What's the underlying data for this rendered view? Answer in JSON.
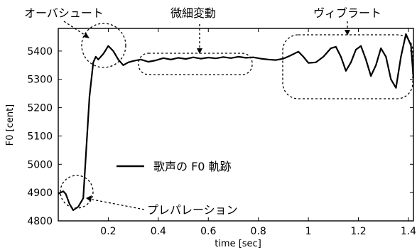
{
  "chart_data": {
    "type": "line",
    "title": "",
    "xlabel": "time [sec]",
    "ylabel": "F0 [cent]",
    "xlim": [
      0,
      1.42
    ],
    "ylim": [
      4800,
      5480
    ],
    "x_ticks": [
      0.2,
      0.4,
      0.6,
      0.8,
      1.0,
      1.2,
      1.4
    ],
    "x_tick_labels": [
      "0.2",
      "0.4",
      "0.6",
      "0.8",
      "1",
      "1.2",
      "1.4"
    ],
    "y_ticks": [
      4800,
      4900,
      5000,
      5100,
      5200,
      5300,
      5400
    ],
    "y_tick_labels": [
      "4800",
      "4900",
      "5000",
      "5100",
      "5200",
      "5300",
      "5400"
    ],
    "grid": false,
    "legend": {
      "placement": "center-left",
      "entries": [
        "歌声の F0 軌跡"
      ]
    },
    "series": [
      {
        "name": "歌声の F0 軌跡",
        "color": "#000000",
        "x": [
          0,
          0.02,
          0.03,
          0.045,
          0.06,
          0.08,
          0.1,
          0.125,
          0.14,
          0.15,
          0.16,
          0.18,
          0.2,
          0.22,
          0.24,
          0.26,
          0.28,
          0.3,
          0.33,
          0.36,
          0.39,
          0.42,
          0.45,
          0.48,
          0.51,
          0.54,
          0.57,
          0.6,
          0.63,
          0.66,
          0.69,
          0.72,
          0.75,
          0.78,
          0.81,
          0.84,
          0.87,
          0.9,
          0.93,
          0.96,
          0.98,
          1.0,
          1.03,
          1.06,
          1.09,
          1.11,
          1.13,
          1.15,
          1.17,
          1.19,
          1.21,
          1.23,
          1.25,
          1.27,
          1.29,
          1.31,
          1.33,
          1.35,
          1.37,
          1.39,
          1.41,
          1.42
        ],
        "y": [
          4895,
          4905,
          4895,
          4860,
          4838,
          4850,
          4880,
          5240,
          5360,
          5380,
          5370,
          5390,
          5418,
          5400,
          5370,
          5350,
          5360,
          5365,
          5370,
          5362,
          5367,
          5375,
          5370,
          5376,
          5372,
          5378,
          5373,
          5377,
          5374,
          5379,
          5375,
          5380,
          5376,
          5378,
          5373,
          5370,
          5368,
          5373,
          5385,
          5398,
          5380,
          5358,
          5360,
          5380,
          5410,
          5415,
          5380,
          5330,
          5360,
          5405,
          5418,
          5370,
          5312,
          5350,
          5410,
          5380,
          5300,
          5270,
          5380,
          5460,
          5420,
          5305
        ]
      }
    ],
    "annotations": [
      {
        "label": "オーバシュート",
        "target": "overshoot around 0.2 sec"
      },
      {
        "label": "微細変動",
        "target": "fine fluctuation 0.35–0.8 sec"
      },
      {
        "label": "ヴィブラート",
        "target": "vibrato 0.98–1.42 sec"
      },
      {
        "label": "プレパレーション",
        "target": "preparation around 0.05 sec"
      }
    ]
  }
}
